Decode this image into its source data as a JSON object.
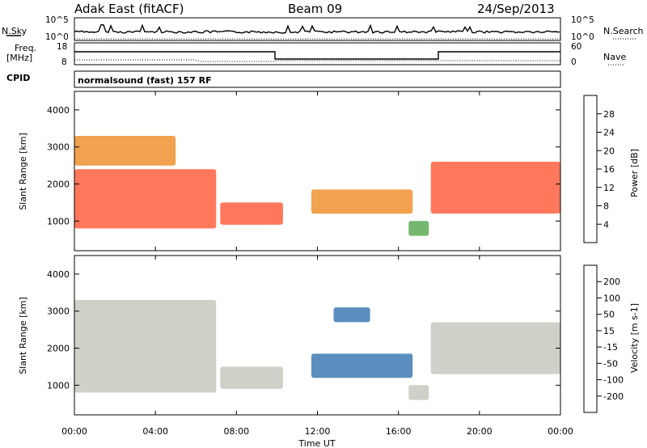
{
  "header": {
    "station": "Adak East (fitACF)",
    "beam": "Beam 09",
    "date": "24/Sep/2013"
  },
  "strip_panels": {
    "nsky": {
      "label": "N.Sky",
      "left_ticks": [
        "10^5",
        "10^0"
      ],
      "right_ticks": [
        "10^5",
        "10^0"
      ],
      "right_label": "N.Search"
    },
    "freq": {
      "label_line1": "Freq.",
      "label_line2": "[MHz]",
      "left_ticks": [
        "18",
        "8"
      ],
      "right_ticks": [
        "60",
        "0"
      ],
      "right_label": "Nave",
      "cpid_label": "CPID"
    },
    "cpid": {
      "text": "normalsound (fast) 157 RF"
    }
  },
  "axes": {
    "x_ticks": [
      "00:00",
      "04:00",
      "08:00",
      "12:00",
      "16:00",
      "20:00",
      "00:00"
    ],
    "x_label": "Time UT",
    "y_label": "Slant Range [km]",
    "y_ticks": [
      "1000",
      "2000",
      "3000",
      "4000"
    ]
  },
  "colorbars": {
    "power": {
      "label": "Power [dB]",
      "ticks": [
        "28",
        "24",
        "20",
        "16",
        "12",
        "8",
        "4"
      ]
    },
    "velocity": {
      "label": "Velocity [m s-1]",
      "ticks": [
        "200",
        "100",
        "50",
        "15",
        "-15",
        "-50",
        "-100",
        "-200"
      ]
    }
  },
  "colors": {
    "power_scale": [
      "#2050d0",
      "#3c6ea0",
      "#468f5a",
      "#5aaa55",
      "#e0c020",
      "#f09030",
      "#ff6040",
      "#e01010"
    ],
    "velocity_scale": [
      "#2040b0",
      "#3c7ab4",
      "#2f8a40",
      "#66cc33",
      "#c8c8c0",
      "#ff9900",
      "#ff6633",
      "#e00000"
    ]
  },
  "chart_data": [
    {
      "type": "heatmap",
      "title": "Power",
      "xlabel": "Time UT",
      "ylabel": "Slant Range [km]",
      "xlim": [
        0,
        24
      ],
      "ylim": [
        200,
        4500
      ],
      "colorbar": "Power [dB]",
      "clim": [
        0,
        30
      ],
      "regions": [
        {
          "t": [
            0.0,
            7.0
          ],
          "range": [
            800,
            2400
          ],
          "value": 26
        },
        {
          "t": [
            0.0,
            5.0
          ],
          "range": [
            2500,
            3300
          ],
          "value": 20
        },
        {
          "t": [
            7.2,
            10.3
          ],
          "range": [
            900,
            1500
          ],
          "value": 23
        },
        {
          "t": [
            11.7,
            16.7
          ],
          "range": [
            1200,
            1850
          ],
          "value": 22
        },
        {
          "t": [
            16.5,
            17.5
          ],
          "range": [
            600,
            1000
          ],
          "value": 12
        },
        {
          "t": [
            17.6,
            24.0
          ],
          "range": [
            1200,
            2600
          ],
          "value": 26
        }
      ]
    },
    {
      "type": "heatmap",
      "title": "Velocity",
      "xlabel": "Time UT",
      "ylabel": "Slant Range [km]",
      "xlim": [
        0,
        24
      ],
      "ylim": [
        200,
        4500
      ],
      "colorbar": "Velocity [m s-1]",
      "clim": [
        -200,
        200
      ],
      "regions": [
        {
          "t": [
            0.0,
            7.0
          ],
          "range": [
            800,
            3300
          ],
          "value": 0
        },
        {
          "t": [
            7.2,
            10.3
          ],
          "range": [
            900,
            1500
          ],
          "value": 40
        },
        {
          "t": [
            11.7,
            16.7
          ],
          "range": [
            1200,
            1850
          ],
          "value": -150
        },
        {
          "t": [
            12.8,
            14.6
          ],
          "range": [
            2700,
            3100
          ],
          "value": -150
        },
        {
          "t": [
            16.5,
            17.5
          ],
          "range": [
            600,
            1000
          ],
          "value": 40
        },
        {
          "t": [
            17.6,
            24.0
          ],
          "range": [
            1300,
            2700
          ],
          "value": 0
        }
      ]
    }
  ]
}
